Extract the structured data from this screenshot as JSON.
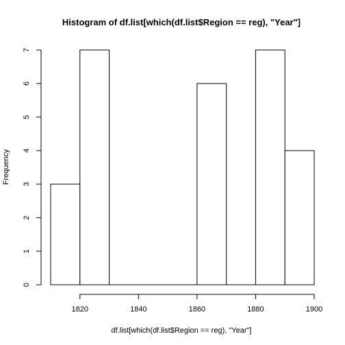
{
  "chart_data": {
    "type": "bar",
    "title": "Histogram of df.list[which(df.list$Region == reg), \"Year\"]",
    "xlabel": "df.list[which(df.list$Region == reg), \"Year\"]",
    "ylabel": "Frequency",
    "bins": [
      {
        "start": 1810,
        "end": 1820,
        "count": 3
      },
      {
        "start": 1820,
        "end": 1830,
        "count": 7
      },
      {
        "start": 1830,
        "end": 1840,
        "count": 0
      },
      {
        "start": 1840,
        "end": 1850,
        "count": 0
      },
      {
        "start": 1850,
        "end": 1860,
        "count": 0
      },
      {
        "start": 1860,
        "end": 1870,
        "count": 6
      },
      {
        "start": 1870,
        "end": 1880,
        "count": 0
      },
      {
        "start": 1880,
        "end": 1890,
        "count": 7
      },
      {
        "start": 1890,
        "end": 1900,
        "count": 4
      }
    ],
    "xticks": [
      "1820",
      "1840",
      "1860",
      "1880",
      "1900"
    ],
    "yticks": [
      "0",
      "1",
      "2",
      "3",
      "4",
      "5",
      "6",
      "7"
    ],
    "xlim": [
      1810,
      1900
    ],
    "ylim": [
      0,
      7
    ],
    "grid": false,
    "legend": "none"
  }
}
